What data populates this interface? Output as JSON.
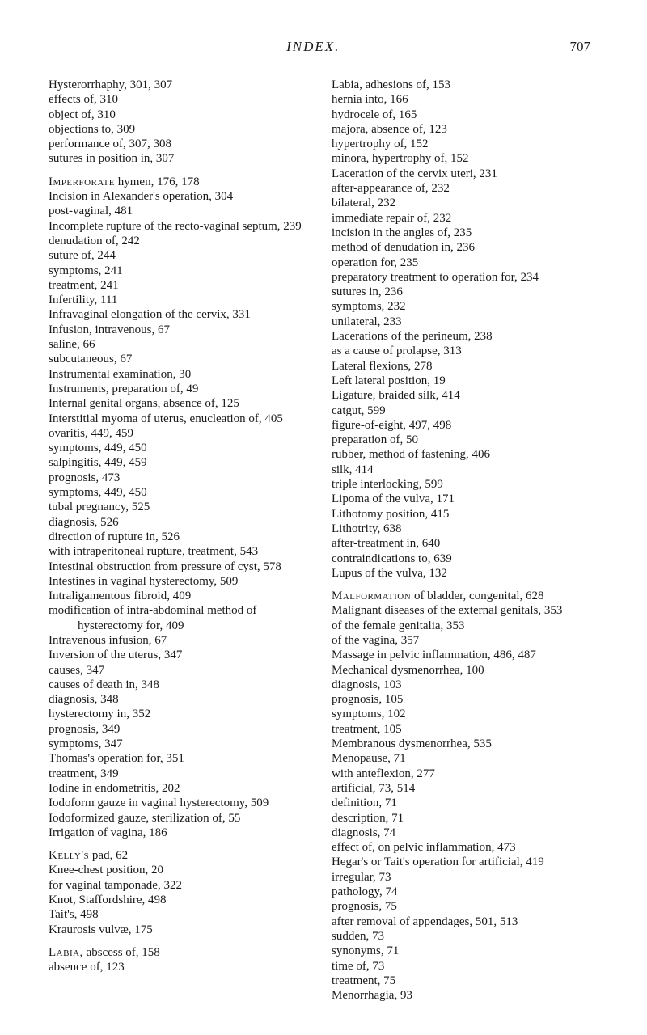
{
  "header": {
    "title": "INDEX.",
    "page": "707"
  },
  "left_col": [
    {
      "t": "entry",
      "txt": "Hysterorrhaphy, 301, 307"
    },
    {
      "t": "entry",
      "txt": "effects of, 310"
    },
    {
      "t": "entry",
      "txt": "object of, 310"
    },
    {
      "t": "entry",
      "txt": "objections to, 309"
    },
    {
      "t": "entry",
      "txt": "performance of, 307, 308"
    },
    {
      "t": "entry",
      "txt": "sutures in position in, 307"
    },
    {
      "t": "gap"
    },
    {
      "t": "entry",
      "sc": "Imperforate",
      "txt": " hymen, 176, 178"
    },
    {
      "t": "entry",
      "txt": "Incision in Alexander's operation, 304"
    },
    {
      "t": "entry",
      "txt": "post-vaginal, 481"
    },
    {
      "t": "entry",
      "txt": "Incomplete rupture of the recto-vaginal septum, 239"
    },
    {
      "t": "entry",
      "txt": "denudation of, 242"
    },
    {
      "t": "entry",
      "txt": "suture of, 244"
    },
    {
      "t": "entry",
      "txt": "symptoms, 241"
    },
    {
      "t": "entry",
      "txt": "treatment, 241"
    },
    {
      "t": "entry",
      "txt": "Infertility, 111"
    },
    {
      "t": "entry",
      "txt": "Infravaginal elongation of the cervix, 331"
    },
    {
      "t": "entry",
      "txt": "Infusion, intravenous, 67"
    },
    {
      "t": "entry",
      "txt": "saline, 66"
    },
    {
      "t": "entry",
      "txt": "subcutaneous, 67"
    },
    {
      "t": "entry",
      "txt": "Instrumental examination, 30"
    },
    {
      "t": "entry",
      "txt": "Instruments, preparation of, 49"
    },
    {
      "t": "entry",
      "txt": "Internal genital organs, absence of, 125"
    },
    {
      "t": "entry",
      "txt": "Interstitial myoma of uterus, enucleation of, 405"
    },
    {
      "t": "entry",
      "txt": "ovaritis, 449, 459"
    },
    {
      "t": "entry",
      "txt": "symptoms, 449, 450"
    },
    {
      "t": "entry",
      "txt": "salpingitis, 449, 459"
    },
    {
      "t": "entry",
      "txt": "prognosis, 473"
    },
    {
      "t": "entry",
      "txt": "symptoms, 449, 450"
    },
    {
      "t": "entry",
      "txt": "tubal pregnancy, 525"
    },
    {
      "t": "entry",
      "txt": "diagnosis, 526"
    },
    {
      "t": "entry",
      "txt": "direction of rupture in, 526"
    },
    {
      "t": "entry",
      "txt": "with intraperitoneal rupture, treatment, 543"
    },
    {
      "t": "entry",
      "txt": "Intestinal obstruction from pressure of cyst, 578"
    },
    {
      "t": "entry",
      "txt": "Intestines in vaginal hysterectomy, 509"
    },
    {
      "t": "entry",
      "txt": "Intraligamentous fibroid, 409"
    },
    {
      "t": "entry",
      "txt": "modification of intra-abdominal method of hysterectomy for, 409"
    },
    {
      "t": "entry",
      "txt": "Intravenous infusion, 67"
    },
    {
      "t": "entry",
      "txt": "Inversion of the uterus, 347"
    },
    {
      "t": "entry",
      "txt": "causes, 347"
    },
    {
      "t": "entry",
      "txt": "causes of death in, 348"
    },
    {
      "t": "entry",
      "txt": "diagnosis, 348"
    },
    {
      "t": "entry",
      "txt": "hysterectomy in, 352"
    },
    {
      "t": "entry",
      "txt": "prognosis, 349"
    },
    {
      "t": "entry",
      "txt": "symptoms, 347"
    },
    {
      "t": "entry",
      "txt": "Thomas's operation for, 351"
    },
    {
      "t": "entry",
      "txt": "treatment, 349"
    },
    {
      "t": "entry",
      "txt": "Iodine in endometritis, 202"
    },
    {
      "t": "entry",
      "txt": "Iodoform gauze in vaginal hysterectomy, 509"
    },
    {
      "t": "entry",
      "txt": "Iodoformized gauze, sterilization of, 55"
    },
    {
      "t": "entry",
      "txt": "Irrigation of vagina, 186"
    },
    {
      "t": "gap"
    },
    {
      "t": "entry",
      "sc": "Kelly's",
      "txt": " pad, 62"
    },
    {
      "t": "entry",
      "txt": "Knee-chest position, 20"
    },
    {
      "t": "entry",
      "txt": "for vaginal tamponade, 322"
    },
    {
      "t": "entry",
      "txt": "Knot, Staffordshire, 498"
    },
    {
      "t": "entry",
      "txt": "Tait's, 498"
    },
    {
      "t": "entry",
      "txt": "Kraurosis vulvæ, 175"
    },
    {
      "t": "gap"
    },
    {
      "t": "entry",
      "sc": "Labia,",
      "txt": " abscess of, 158"
    },
    {
      "t": "entry",
      "txt": "absence of, 123"
    }
  ],
  "right_col": [
    {
      "t": "entry",
      "txt": "Labia, adhesions of, 153"
    },
    {
      "t": "entry",
      "txt": "hernia into, 166"
    },
    {
      "t": "entry",
      "txt": "hydrocele of, 165"
    },
    {
      "t": "entry",
      "txt": "majora, absence of, 123"
    },
    {
      "t": "entry",
      "txt": "hypertrophy of, 152"
    },
    {
      "t": "entry",
      "txt": "minora, hypertrophy of, 152"
    },
    {
      "t": "entry",
      "txt": "Laceration of the cervix uteri, 231"
    },
    {
      "t": "entry",
      "txt": "after-appearance of, 232"
    },
    {
      "t": "entry",
      "txt": "bilateral, 232"
    },
    {
      "t": "entry",
      "txt": "immediate repair of, 232"
    },
    {
      "t": "entry",
      "txt": "incision in the angles of, 235"
    },
    {
      "t": "entry",
      "txt": "method of denudation in, 236"
    },
    {
      "t": "entry",
      "txt": "operation for, 235"
    },
    {
      "t": "entry",
      "txt": "preparatory treatment to opera­tion for, 234"
    },
    {
      "t": "entry",
      "txt": "sutures in, 236"
    },
    {
      "t": "entry",
      "txt": "symptoms, 232"
    },
    {
      "t": "entry",
      "txt": "unilateral, 233"
    },
    {
      "t": "entry",
      "txt": "Lacerations of the perineum, 238"
    },
    {
      "t": "entry",
      "txt": "as a cause of prolapse, 313"
    },
    {
      "t": "entry",
      "txt": "Lateral flexions, 278"
    },
    {
      "t": "entry",
      "txt": "Left lateral position, 19"
    },
    {
      "t": "entry",
      "txt": "Ligature, braided silk, 414"
    },
    {
      "t": "entry",
      "txt": "catgut, 599"
    },
    {
      "t": "entry",
      "txt": "figure-of-eight, 497, 498"
    },
    {
      "t": "entry",
      "txt": "preparation of, 50"
    },
    {
      "t": "entry",
      "txt": "rubber, method of fastening, 406"
    },
    {
      "t": "entry",
      "txt": "silk, 414"
    },
    {
      "t": "entry",
      "txt": "triple interlocking, 599"
    },
    {
      "t": "entry",
      "txt": "Lipoma of the vulva, 171"
    },
    {
      "t": "entry",
      "txt": "Lithotomy position, 415"
    },
    {
      "t": "entry",
      "txt": "Lithotrity, 638"
    },
    {
      "t": "entry",
      "txt": "after-treatment in, 640"
    },
    {
      "t": "entry",
      "txt": "contraindications to, 639"
    },
    {
      "t": "entry",
      "txt": "Lupus of the vulva, 132"
    },
    {
      "t": "gap"
    },
    {
      "t": "entry",
      "sc": "Malformation",
      "txt": " of bladder, congenital, 628"
    },
    {
      "t": "entry",
      "txt": "Malignant diseases of the external genitals, 353"
    },
    {
      "t": "entry",
      "txt": "of the female genitalia, 353"
    },
    {
      "t": "entry",
      "txt": "of the vagina, 357"
    },
    {
      "t": "entry",
      "txt": "Massage in pelvic inflammation, 486, 487"
    },
    {
      "t": "entry",
      "txt": "Mechanical dysmenorrhea, 100"
    },
    {
      "t": "entry",
      "txt": "diagnosis, 103"
    },
    {
      "t": "entry",
      "txt": "prognosis, 105"
    },
    {
      "t": "entry",
      "txt": "symptoms, 102"
    },
    {
      "t": "entry",
      "txt": "treatment, 105"
    },
    {
      "t": "entry",
      "txt": "Membranous dysmenorrhea, 535"
    },
    {
      "t": "entry",
      "txt": "Menopause, 71"
    },
    {
      "t": "entry",
      "txt": "with anteflexion, 277"
    },
    {
      "t": "entry",
      "txt": "artificial, 73, 514"
    },
    {
      "t": "entry",
      "txt": "definition, 71"
    },
    {
      "t": "entry",
      "txt": "description, 71"
    },
    {
      "t": "entry",
      "txt": "diagnosis, 74"
    },
    {
      "t": "entry",
      "txt": "effect of, on pelvic inflammation, 473"
    },
    {
      "t": "entry",
      "txt": "Hegar's or Tait's operation for arti­ficial, 419"
    },
    {
      "t": "entry",
      "txt": "irregular, 73"
    },
    {
      "t": "entry",
      "txt": "pathology, 74"
    },
    {
      "t": "entry",
      "txt": "prognosis, 75"
    },
    {
      "t": "entry",
      "txt": "after removal of appendages, 501, 513"
    },
    {
      "t": "entry",
      "txt": "sudden, 73"
    },
    {
      "t": "entry",
      "txt": "synonyms, 71"
    },
    {
      "t": "entry",
      "txt": "time of, 73"
    },
    {
      "t": "entry",
      "txt": "treatment, 75"
    },
    {
      "t": "entry",
      "txt": "Menorrhagia, 93"
    }
  ]
}
